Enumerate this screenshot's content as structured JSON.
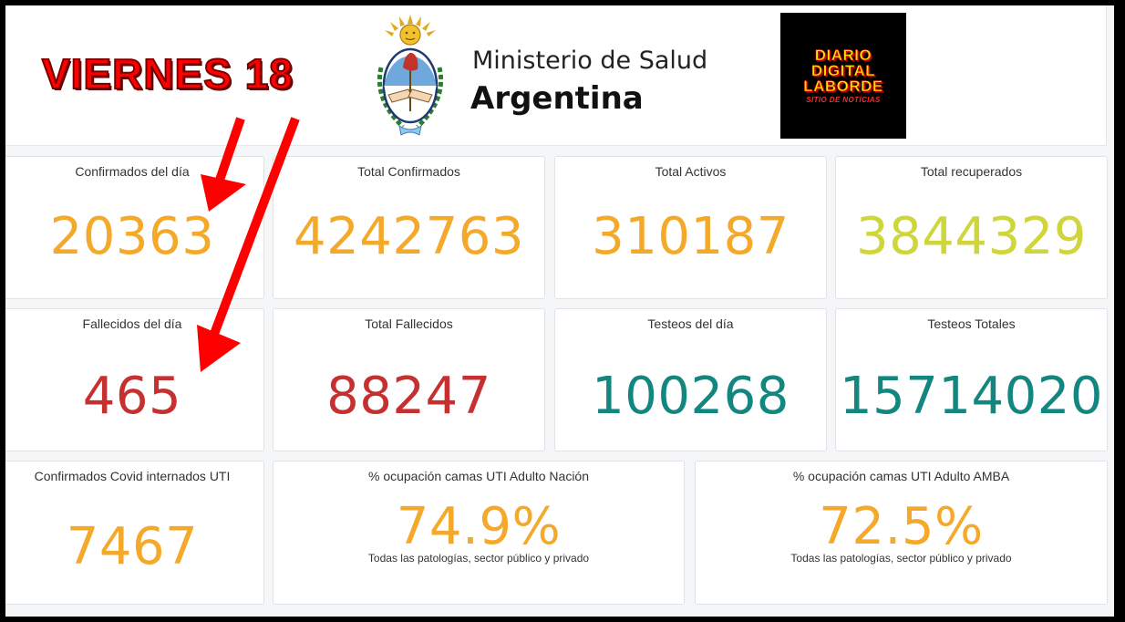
{
  "colors": {
    "orange": "#f4a92b",
    "lime": "#cfd63c",
    "red": "#c53030",
    "teal": "#13877f",
    "annotation_red": "#ff0000"
  },
  "annotation": {
    "text": "VIERNES 18"
  },
  "header": {
    "ministry_line1": "Ministerio de Salud",
    "ministry_line2": "Argentina",
    "emblem_icon": "escudo-nacional-icon",
    "logo": {
      "line1": "DIARIO",
      "line2": "DIGITAL",
      "line3": "LABORDE",
      "tagline": "SITIO DE NOTICIAS"
    }
  },
  "stats": {
    "confirmados_dia": {
      "label": "Confirmados del día",
      "value": "20363"
    },
    "total_confirmados": {
      "label": "Total Confirmados",
      "value": "4242763"
    },
    "total_activos": {
      "label": "Total Activos",
      "value": "310187"
    },
    "total_recuperados": {
      "label": "Total recuperados",
      "value": "3844329"
    },
    "fallecidos_dia": {
      "label": "Fallecidos del día",
      "value": "465"
    },
    "total_fallecidos": {
      "label": "Total Fallecidos",
      "value": "88247"
    },
    "testeos_dia": {
      "label": "Testeos del día",
      "value": "100268"
    },
    "testeos_totales": {
      "label": "Testeos Totales",
      "value": "15714020"
    },
    "internados_uti": {
      "label": "Confirmados Covid internados UTI",
      "value": "7467"
    },
    "ocupacion_nacion": {
      "label": "% ocupación camas UTI Adulto Nación",
      "value": "74.9%",
      "note": "Todas las patologías, sector público y privado"
    },
    "ocupacion_amba": {
      "label": "% ocupación camas UTI Adulto AMBA",
      "value": "72.5%",
      "note": "Todas las patologías, sector público y privado"
    }
  }
}
